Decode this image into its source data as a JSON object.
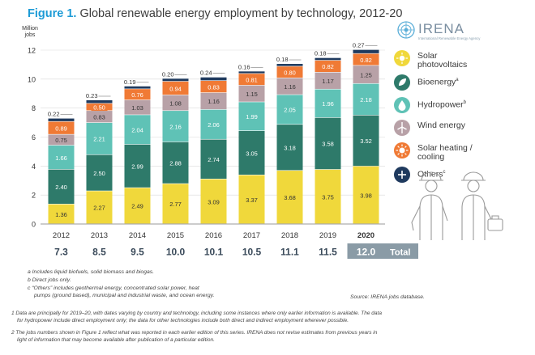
{
  "header": {
    "figure_label": "Figure 1.",
    "title": "Global renewable energy employment by technology, 2012-20"
  },
  "logo": {
    "name": "IRENA",
    "tagline": "International Renewable Energy Agency"
  },
  "chart_data": {
    "type": "bar",
    "stacked": true,
    "ylabel": "Million jobs",
    "ylim": [
      0,
      12
    ],
    "yticks": [
      0,
      2,
      4,
      6,
      8,
      10,
      12
    ],
    "grid": true,
    "legend_position": "right",
    "categories": [
      "2012",
      "2013",
      "2014",
      "2015",
      "2016",
      "2017",
      "2018",
      "2019",
      "2020"
    ],
    "series": [
      {
        "name": "Solar photovoltaics",
        "color": "#f0d83b",
        "values": [
          1.36,
          2.27,
          2.49,
          2.77,
          3.09,
          3.37,
          3.68,
          3.75,
          3.98
        ]
      },
      {
        "name": "Bioenergy",
        "sup": "a",
        "color": "#2e7a6a",
        "values": [
          2.4,
          2.5,
          2.99,
          2.88,
          2.74,
          3.05,
          3.18,
          3.58,
          3.52
        ]
      },
      {
        "name": "Hydropower",
        "sup": "b",
        "color": "#5fc2b6",
        "values": [
          1.66,
          2.21,
          2.04,
          2.16,
          2.06,
          1.99,
          2.05,
          1.96,
          2.18
        ]
      },
      {
        "name": "Wind energy",
        "color": "#b8a1a7",
        "values": [
          0.75,
          0.83,
          1.03,
          1.08,
          1.16,
          1.15,
          1.16,
          1.17,
          1.25
        ]
      },
      {
        "name": "Solar heating / cooling",
        "color": "#f07a35",
        "values": [
          0.89,
          0.5,
          0.76,
          0.94,
          0.83,
          0.81,
          0.8,
          0.82,
          0.82
        ]
      },
      {
        "name": "Others",
        "sup": "c",
        "color": "#1f3a5e",
        "values": [
          0.22,
          0.23,
          0.19,
          0.2,
          0.24,
          0.16,
          0.18,
          0.18,
          0.27
        ]
      }
    ],
    "totals": [
      "7.3",
      "8.5",
      "9.5",
      "10.0",
      "10.1",
      "10.5",
      "11.1",
      "11.5",
      "12.0"
    ],
    "totals_label": "Total",
    "highlight_category": "2020"
  },
  "footnotes": {
    "a": "a  Includes liquid biofuels, solid biomass and biogas.",
    "b": "b  Direct jobs only.",
    "c1": "c  “Others” includes geothermal energy, concentrated solar power, heat",
    "c2": "pumps (ground based), municipal and industrial waste, and ocean energy.",
    "source": "Source: IRENA jobs database.",
    "note1a": "1  Data are principally for 2019–20, with dates varying by country and technology, including some instances where only earlier information is available. The data",
    "note1b": "for hydropower include direct employment only; the data for other technologies include both direct and indirect employment wherever possible.",
    "note2a": "2  The jobs numbers shown in Figure 1 reflect what was reported in each earlier edition of this series. IRENA does not revise estimates from previous years in",
    "note2b": "light of information that may become available after publication of a particular edition."
  }
}
